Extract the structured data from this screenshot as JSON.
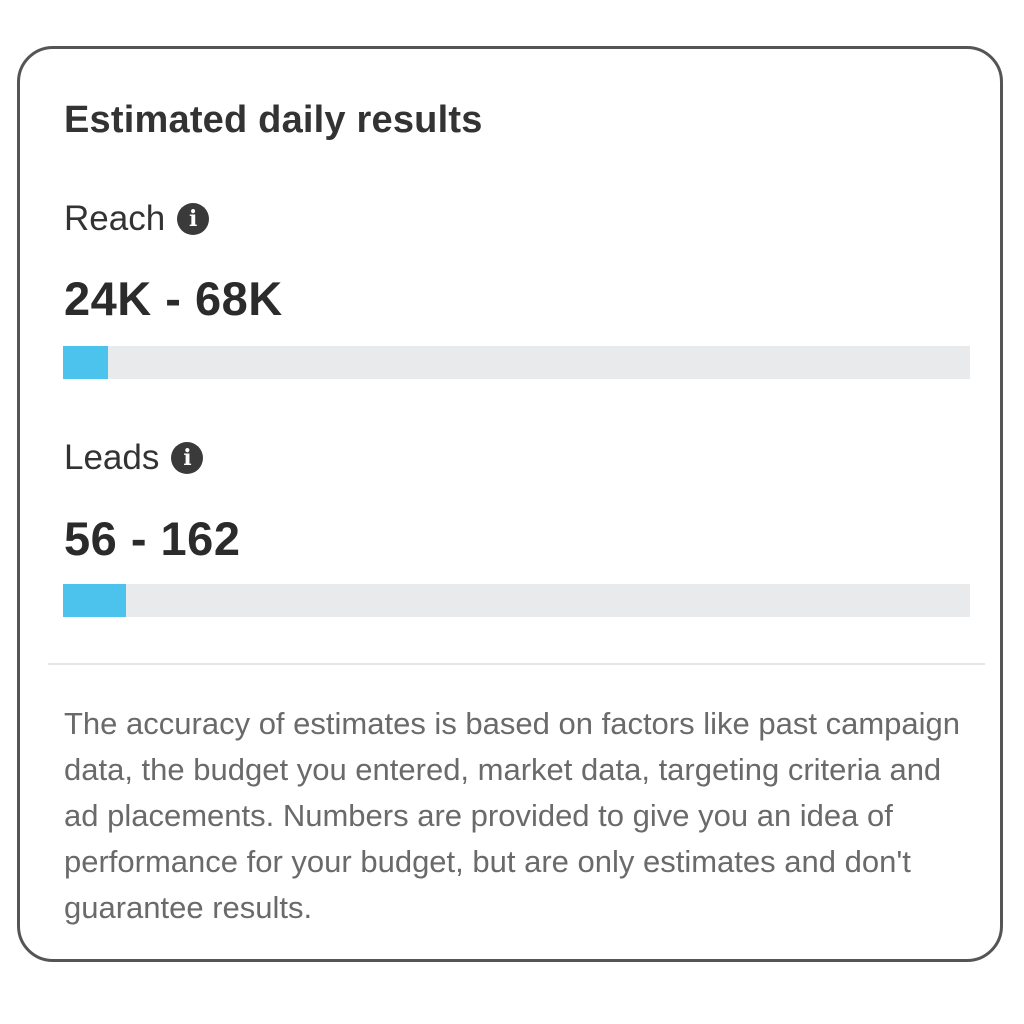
{
  "card": {
    "title": "Estimated daily results",
    "metrics": [
      {
        "label": "Reach",
        "info_icon": "info-icon",
        "value": "24K - 68K",
        "progress_fraction": 0.05
      },
      {
        "label": "Leads",
        "info_icon": "info-icon",
        "value": "56 - 162",
        "progress_fraction": 0.07
      }
    ],
    "disclaimer": "The accuracy of estimates is based on factors like past campaign data, the budget you entered, market data, targeting criteria and ad placements. Numbers are provided to give you an idea of performance for your budget, but are only estimates and don't guarantee results."
  },
  "colors": {
    "bar_fill": "#4cc3ec",
    "bar_track": "#e9eaec",
    "border": "#555555"
  }
}
